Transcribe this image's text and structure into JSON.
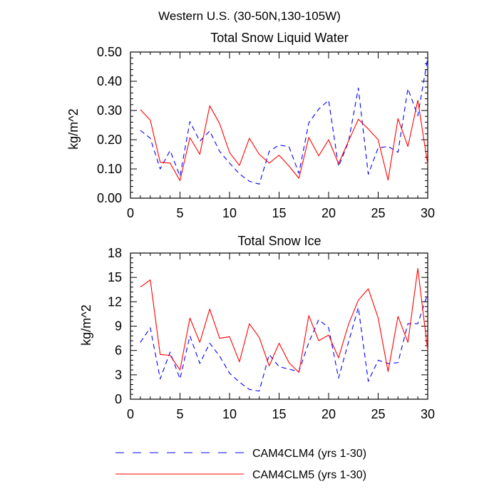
{
  "figure_title": "Western U.S. (30-50N,130-105W)",
  "chart_data": [
    {
      "type": "line",
      "title": "Total Snow Liquid Water",
      "xlabel": "",
      "ylabel": "kg/m^2",
      "xlim": [
        0,
        30
      ],
      "ylim": [
        0,
        0.5
      ],
      "x_ticks": [
        "0",
        "5",
        "10",
        "15",
        "20",
        "25",
        "30"
      ],
      "y_ticks": [
        "0.00",
        "0.10",
        "0.20",
        "0.30",
        "0.40",
        "0.50"
      ],
      "grid": false,
      "x": [
        1,
        2,
        3,
        4,
        5,
        6,
        7,
        8,
        9,
        10,
        11,
        12,
        13,
        14,
        15,
        16,
        17,
        18,
        19,
        20,
        21,
        22,
        23,
        24,
        25,
        26,
        27,
        28,
        29,
        30
      ],
      "series": [
        {
          "name": "CAM4CLM4 (yrs 1-30)",
          "color": "#0000ff",
          "style": "dashed",
          "values": [
            0.232,
            0.205,
            0.1,
            0.163,
            0.075,
            0.262,
            0.195,
            0.23,
            0.16,
            0.12,
            0.083,
            0.058,
            0.048,
            0.16,
            0.182,
            0.176,
            0.085,
            0.258,
            0.305,
            0.335,
            0.108,
            0.192,
            0.377,
            0.082,
            0.172,
            0.177,
            0.157,
            0.375,
            0.282,
            0.48
          ]
        },
        {
          "name": "CAM4CLM5 (yrs 1-30)",
          "color": "#ff0000",
          "style": "solid",
          "values": [
            0.303,
            0.267,
            0.123,
            0.12,
            0.06,
            0.207,
            0.15,
            0.316,
            0.255,
            0.156,
            0.112,
            0.205,
            0.15,
            0.12,
            0.147,
            0.11,
            0.068,
            0.208,
            0.145,
            0.2,
            0.118,
            0.195,
            0.27,
            0.237,
            0.2,
            0.062,
            0.272,
            0.177,
            0.335,
            0.115
          ]
        }
      ]
    },
    {
      "type": "line",
      "title": "Total Snow Ice",
      "xlabel": "",
      "ylabel": "kg/m^2",
      "xlim": [
        0,
        30
      ],
      "ylim": [
        0,
        18
      ],
      "x_ticks": [
        "0",
        "5",
        "10",
        "15",
        "20",
        "25",
        "30"
      ],
      "y_ticks": [
        "0",
        "3",
        "6",
        "9",
        "12",
        "15",
        "18"
      ],
      "grid": false,
      "x": [
        1,
        2,
        3,
        4,
        5,
        6,
        7,
        8,
        9,
        10,
        11,
        12,
        13,
        14,
        15,
        16,
        17,
        18,
        19,
        20,
        21,
        22,
        23,
        24,
        25,
        26,
        27,
        28,
        29,
        30
      ],
      "series": [
        {
          "name": "CAM4CLM4 (yrs 1-30)",
          "color": "#0000ff",
          "style": "dashed",
          "values": [
            7.0,
            8.8,
            2.5,
            5.8,
            2.5,
            7.8,
            4.4,
            6.9,
            5.3,
            3.2,
            2.1,
            1.2,
            1.0,
            5.5,
            4.0,
            3.7,
            3.4,
            7.0,
            9.8,
            8.8,
            2.6,
            7.0,
            11.3,
            2.2,
            4.8,
            4.4,
            4.5,
            9.3,
            9.3,
            13.0
          ]
        },
        {
          "name": "CAM4CLM5 (yrs 1-30)",
          "color": "#ff0000",
          "style": "solid",
          "values": [
            13.8,
            14.7,
            5.5,
            5.4,
            3.6,
            10.0,
            7.0,
            11.1,
            7.5,
            7.7,
            4.6,
            9.3,
            7.6,
            4.1,
            6.9,
            4.5,
            3.3,
            10.3,
            7.2,
            7.9,
            5.1,
            9.2,
            12.2,
            13.6,
            10.0,
            3.4,
            10.2,
            7.0,
            16.1,
            6.0
          ]
        }
      ]
    }
  ],
  "legend": {
    "placement": "bottom",
    "entries": [
      {
        "label": "CAM4CLM4 (yrs 1-30)",
        "color": "#0000ff",
        "style": "dashed"
      },
      {
        "label": "CAM4CLM5 (yrs 1-30)",
        "color": "#ff0000",
        "style": "solid"
      }
    ]
  }
}
